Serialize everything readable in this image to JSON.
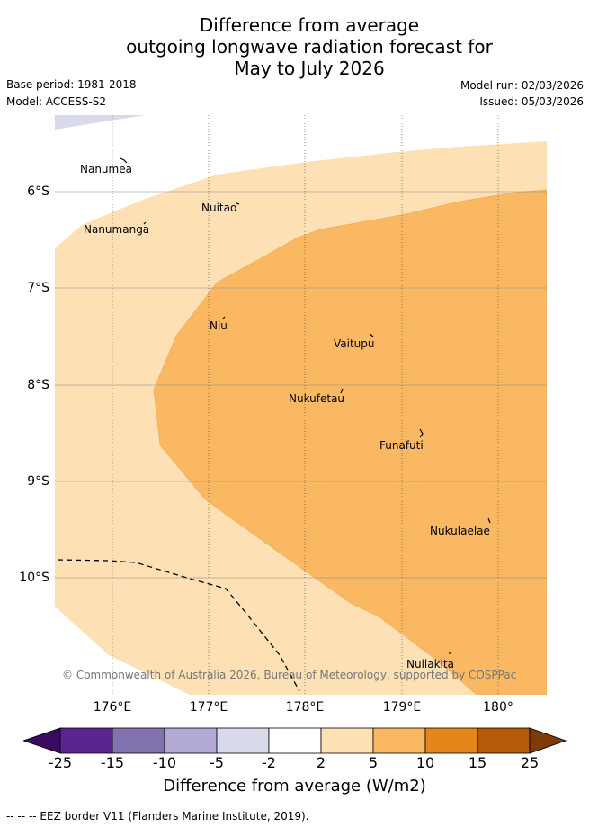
{
  "title": {
    "line1": "Difference from average",
    "line2": "outgoing longwave radiation forecast for",
    "line3": "May to July 2026"
  },
  "meta": {
    "base_period": "Base period: 1981-2018",
    "model": "Model: ACCESS-S2",
    "model_run": "Model run: 02/03/2026",
    "issued": "Issued: 05/03/2026"
  },
  "axes": {
    "lat_ticks": [
      "6°S",
      "7°S",
      "8°S",
      "9°S",
      "10°S"
    ],
    "lon_ticks": [
      "176°E",
      "177°E",
      "178°E",
      "179°E",
      "180°"
    ]
  },
  "islands": [
    {
      "name": "Nanumea"
    },
    {
      "name": "Nuitao"
    },
    {
      "name": "Nanumanga"
    },
    {
      "name": "Niu"
    },
    {
      "name": "Vaitupu"
    },
    {
      "name": "Nukufetau"
    },
    {
      "name": "Funafuti"
    },
    {
      "name": "Nukulaelae"
    },
    {
      "name": "Nuilakita"
    }
  ],
  "copyright": "© Commonwealth of Australia 2026, Bureau of Meteorology, supported by COSPPac",
  "colorbar": {
    "ticks": [
      "-25",
      "-15",
      "-10",
      "-5",
      "-2",
      "2",
      "5",
      "10",
      "15",
      "25"
    ],
    "colors": [
      "#3a0a5e",
      "#5a2590",
      "#8272b0",
      "#b2aad4",
      "#d9d9ec",
      "#ffffff",
      "#fde0b4",
      "#fbb862",
      "#e5861b",
      "#b55a07",
      "#7f3a07"
    ],
    "label": "Difference from average (W/m2)"
  },
  "legend": "--  --  -- EEZ border V11 (Flanders Marine Institute, 2019).",
  "colors": {
    "band_2_5": "#fde0b4",
    "band_5_10": "#fbb862",
    "band_neg5_neg2": "#d9d9ec"
  }
}
